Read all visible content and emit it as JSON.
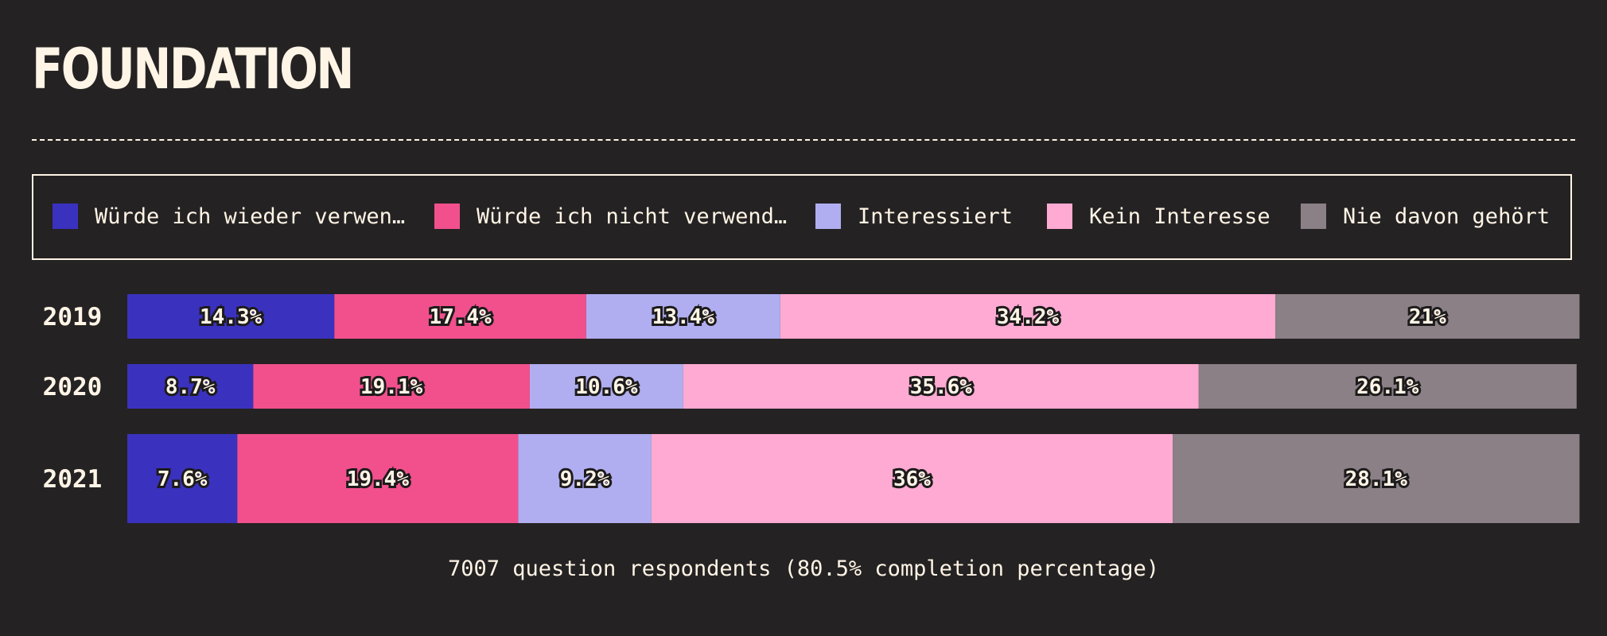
{
  "title": "FOUNDATION",
  "footer": "7007 question respondents (80.5% completion percentage)",
  "legend": [
    {
      "label": "Würde ich wieder verwen…",
      "color": "#3a32be"
    },
    {
      "label": "Würde ich nicht verwend…",
      "color": "#f1508d"
    },
    {
      "label": "Interessiert",
      "color": "#b0aef0"
    },
    {
      "label": "Kein Interesse",
      "color": "#ffaad2"
    },
    {
      "label": "Nie davon gehört",
      "color": "#8a8085"
    }
  ],
  "chart_data": {
    "type": "bar",
    "orientation": "horizontal-stacked",
    "categories": [
      "2019",
      "2020",
      "2021"
    ],
    "series": [
      {
        "name": "Würde ich wieder verwen…",
        "color": "#3a32be",
        "values": [
          14.3,
          8.7,
          7.6
        ],
        "labels": [
          "14.3%",
          "8.7%",
          "7.6%"
        ]
      },
      {
        "name": "Würde ich nicht verwend…",
        "color": "#f1508d",
        "values": [
          17.4,
          19.1,
          19.4
        ],
        "labels": [
          "17.4%",
          "19.1%",
          "19.4%"
        ]
      },
      {
        "name": "Interessiert",
        "color": "#b0aef0",
        "values": [
          13.4,
          10.6,
          9.2
        ],
        "labels": [
          "13.4%",
          "10.6%",
          "9.2%"
        ]
      },
      {
        "name": "Kein Interesse",
        "color": "#ffaad2",
        "values": [
          34.2,
          35.6,
          36
        ],
        "labels": [
          "34.2%",
          "35.6%",
          "36%"
        ]
      },
      {
        "name": "Nie davon gehört",
        "color": "#8a8085",
        "values": [
          21,
          26.1,
          28.1
        ],
        "labels": [
          "21%",
          "26.1%",
          "28.1%"
        ]
      }
    ],
    "xlim": [
      0,
      100
    ],
    "legend_position": "top",
    "grid": false
  }
}
